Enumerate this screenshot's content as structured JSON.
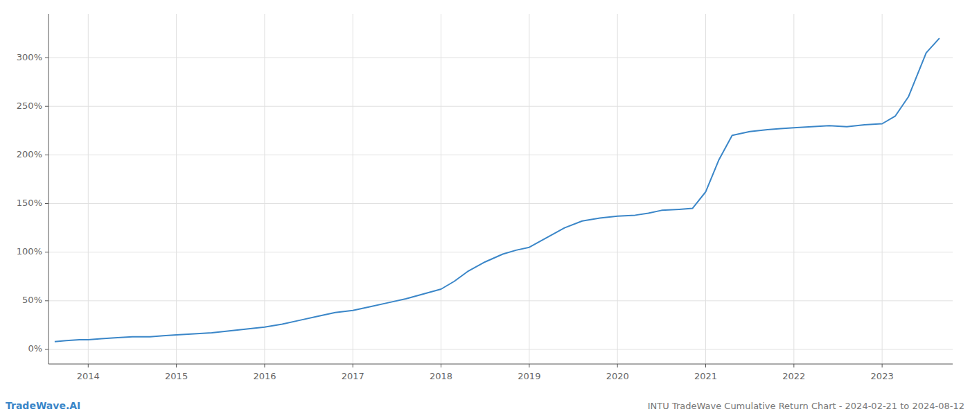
{
  "chart_data": {
    "type": "line",
    "title": "INTU TradeWave Cumulative Return Chart - 2024-02-21 to 2024-08-12",
    "annotations": [
      "TradeWave.AI"
    ],
    "color": "#3a86c8",
    "grid": true,
    "x": [
      2013.62,
      2013.75,
      2013.9,
      2014.0,
      2014.15,
      2014.3,
      2014.5,
      2014.7,
      2014.85,
      2015.0,
      2015.2,
      2015.4,
      2015.6,
      2015.8,
      2016.0,
      2016.2,
      2016.4,
      2016.6,
      2016.8,
      2017.0,
      2017.2,
      2017.4,
      2017.6,
      2017.8,
      2018.0,
      2018.15,
      2018.3,
      2018.5,
      2018.7,
      2018.85,
      2019.0,
      2019.2,
      2019.4,
      2019.6,
      2019.8,
      2020.0,
      2020.2,
      2020.35,
      2020.5,
      2020.7,
      2020.85,
      2021.0,
      2021.15,
      2021.3,
      2021.5,
      2021.7,
      2021.85,
      2022.0,
      2022.2,
      2022.4,
      2022.6,
      2022.8,
      2023.0,
      2023.15,
      2023.3,
      2023.5,
      2023.65
    ],
    "values": [
      8,
      9,
      10,
      10,
      11,
      12,
      13,
      13,
      14,
      15,
      16,
      17,
      19,
      21,
      23,
      26,
      30,
      34,
      38,
      40,
      44,
      48,
      52,
      57,
      62,
      70,
      80,
      90,
      98,
      102,
      105,
      115,
      125,
      132,
      135,
      137,
      138,
      140,
      143,
      144,
      145,
      162,
      195,
      220,
      224,
      226,
      227,
      228,
      229,
      230,
      229,
      231,
      232,
      240,
      260,
      305,
      320
    ],
    "xlim": [
      2013.55,
      2023.8
    ],
    "xticks": [
      2014,
      2015,
      2016,
      2017,
      2018,
      2019,
      2020,
      2021,
      2022,
      2023
    ],
    "ylim": [
      -15,
      345
    ],
    "yticks": [
      {
        "value": 0,
        "label": "0%"
      },
      {
        "value": 50,
        "label": "50%"
      },
      {
        "value": 100,
        "label": "100%"
      },
      {
        "value": 150,
        "label": "150%"
      },
      {
        "value": 200,
        "label": "200%"
      },
      {
        "value": 250,
        "label": "250%"
      },
      {
        "value": 300,
        "label": "300%"
      }
    ]
  }
}
